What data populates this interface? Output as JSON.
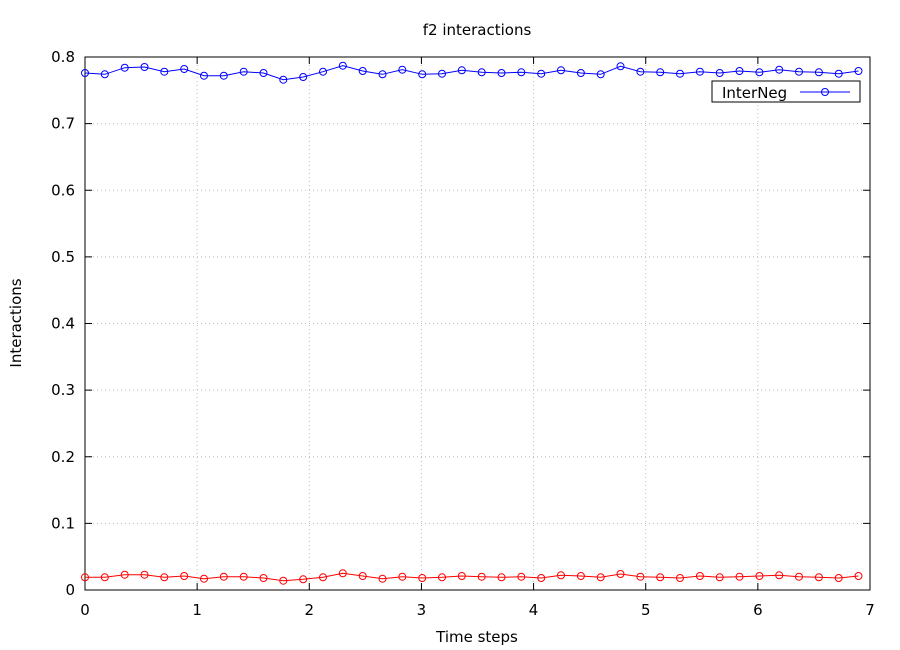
{
  "chart_data": {
    "type": "line",
    "title": "f2 interactions",
    "xlabel": "Time steps",
    "ylabel": "Interactions",
    "xlim": [
      0,
      7
    ],
    "ylim": [
      0,
      0.8
    ],
    "xticks": [
      "0",
      "1",
      "2",
      "3",
      "4",
      "5",
      "6",
      "7"
    ],
    "yticks": [
      "0",
      "0.1",
      "0.2",
      "0.3",
      "0.4",
      "0.5",
      "0.6",
      "0.7",
      "0.8"
    ],
    "grid": true,
    "legend_position": "top-right",
    "marker": "open-circle",
    "x_scale_note": "log of time step",
    "series": [
      {
        "name": "InterNeg",
        "color": "#0000ff",
        "max_step": 990,
        "values": [
          0.776,
          0.774,
          0.784,
          0.785,
          0.778,
          0.782,
          0.772,
          0.772,
          0.778,
          0.776,
          0.766,
          0.77,
          0.778,
          0.787,
          0.779,
          0.774,
          0.781,
          0.774,
          0.775,
          0.78,
          0.777,
          0.776,
          0.777,
          0.775,
          0.78,
          0.776,
          0.774,
          0.786,
          0.778,
          0.777,
          0.775,
          0.778,
          0.776,
          0.779,
          0.777,
          0.781,
          0.778,
          0.777,
          0.775,
          0.779
        ]
      },
      {
        "name": "",
        "color": "#ff0000",
        "max_step": 990,
        "values": [
          0.019,
          0.019,
          0.023,
          0.023,
          0.019,
          0.021,
          0.017,
          0.02,
          0.02,
          0.018,
          0.014,
          0.016,
          0.019,
          0.025,
          0.021,
          0.017,
          0.02,
          0.018,
          0.019,
          0.021,
          0.02,
          0.019,
          0.02,
          0.018,
          0.022,
          0.021,
          0.019,
          0.024,
          0.02,
          0.019,
          0.018,
          0.021,
          0.019,
          0.02,
          0.021,
          0.022,
          0.02,
          0.019,
          0.018,
          0.021
        ]
      }
    ]
  }
}
